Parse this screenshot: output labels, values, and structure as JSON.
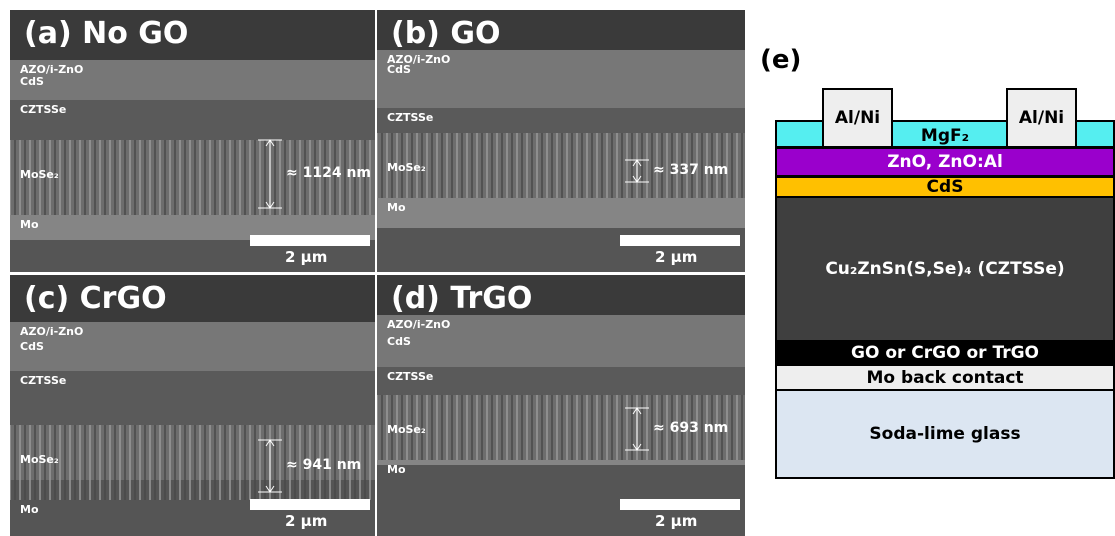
{
  "panels": [
    {
      "title": "(a) No GO",
      "layers": [
        "AZO/i-ZnO",
        "CdS",
        "CZTSSe",
        "MoSe₂",
        "Mo"
      ],
      "thickness": "≈ 1124 nm",
      "scale": "2 µm"
    },
    {
      "title": "(b) GO",
      "layers": [
        "AZO/i-ZnO",
        "CdS",
        "CZTSSe",
        "MoSe₂",
        "Mo"
      ],
      "thickness": "≈ 337 nm",
      "scale": "2 µm"
    },
    {
      "title": "(c) CrGO",
      "layers": [
        "AZO/i-ZnO",
        "CdS",
        "CZTSSe",
        "MoSe₂",
        "Mo"
      ],
      "thickness": "≈ 941 nm",
      "scale": "2 µm"
    },
    {
      "title": "(d) TrGO",
      "layers": [
        "AZO/i-ZnO",
        "CdS",
        "CZTSSe",
        "MoSe₂",
        "Mo"
      ],
      "thickness": "≈ 693 nm",
      "scale": "2 µm"
    }
  ],
  "diagram": {
    "label": "(e)",
    "contacts": [
      "Al/Ni",
      "Al/Ni"
    ],
    "layers": [
      "MgF₂",
      "ZnO, ZnO:Al",
      "CdS",
      "Cu₂ZnSn(S,Se)₄ (CZTSSe)",
      "GO or CrGO or TrGO",
      "Mo back contact",
      "Soda-lime glass"
    ]
  }
}
